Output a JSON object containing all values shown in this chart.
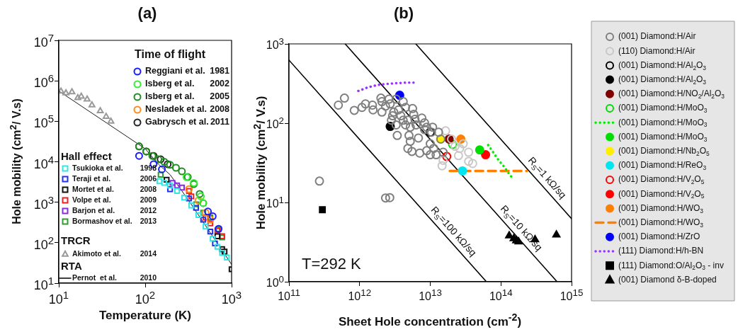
{
  "chart_data": [
    {
      "type": "scatter",
      "title": "(a)",
      "xlabel": "Temperature (K)",
      "ylabel": "Hole mobility (cm$^{2}$/ V.s)",
      "log": "xy",
      "grid": false,
      "legend": "top right",
      "xlim": [
        10,
        1000
      ],
      "ylim": [
        10,
        10000000
      ],
      "xticks": [
        {
          "value": 10,
          "label": "10$^{1}$"
        },
        {
          "value": 100,
          "label": "10$^{2}$"
        },
        {
          "value": 1000,
          "label": "10$^{3}$"
        }
      ],
      "yticks": [
        {
          "value": 10,
          "label": "10$^{1}$"
        },
        {
          "value": 100,
          "label": "10$^{2}$"
        },
        {
          "value": 1000,
          "label": "10$^{3}$"
        },
        {
          "value": 10000,
          "label": "10$^{4}$"
        },
        {
          "value": 100000,
          "label": "10$^{5}$"
        },
        {
          "value": 1000000,
          "label": "10$^{6}$"
        },
        {
          "value": 10000000,
          "label": "10$^{7}$"
        }
      ],
      "annotations": [
        "Time of flight",
        "Hall effect",
        "TRCR",
        "RTA"
      ],
      "series": [
        {
          "name": "Reggiani et al. 1981",
          "color": "#1a1aff",
          "marker": "circle-open",
          "x": [
            85,
            125,
            156,
            532,
            604,
            707
          ],
          "values": [
            14000,
            8700,
            6500,
            590,
            450,
            220
          ]
        },
        {
          "name": "Isberg et al. 2002",
          "color": "#33ee33",
          "marker": "circle-open",
          "x": [
            301,
            365,
            440,
            469
          ],
          "values": [
            4200,
            3000,
            1400,
            950
          ]
        },
        {
          "name": "Isberg et al. 2005",
          "color": "#228b22",
          "marker": "circle-open",
          "x": [
            85,
            103,
            121,
            142,
            166,
            194,
            227,
            266,
            311,
            365,
            427,
            469
          ],
          "values": [
            24000,
            18000,
            14000,
            11500,
            10000,
            8400,
            7100,
            5800,
            4200,
            2800,
            1600,
            950
          ]
        },
        {
          "name": "Nesladek et al. 2008",
          "color": "#ff8c1a",
          "marker": "circle-open",
          "x": [
            321,
            413,
            500,
            567
          ],
          "values": [
            2100,
            1100,
            550,
            370
          ]
        },
        {
          "name": "Gabrysch et al. 2011",
          "color": "#222222",
          "marker": "circle-open",
          "x": [
            85,
            103,
            125,
            151,
            182
          ],
          "values": [
            24000,
            18000,
            14000,
            11500,
            8700
          ]
        },
        {
          "name": "Tsukioka et al. 1998",
          "color": "#33e6e6",
          "marker": "square-open",
          "x": [
            146,
            166,
            194,
            234,
            283,
            342,
            413,
            500,
            604,
            685,
            777,
            881
          ],
          "values": [
            3300,
            3000,
            2600,
            1900,
            1300,
            830,
            480,
            250,
            126,
            79,
            56,
            43
          ]
        },
        {
          "name": "Teraji et al. 2006",
          "color": "#2233ee",
          "marker": "square-open",
          "x": [
            194,
            321,
            388,
            469,
            567,
            642
          ],
          "values": [
            2100,
            1240,
            724,
            369,
            188,
            96
          ]
        },
        {
          "name": "Mortet et al. 2008",
          "color": "#111111",
          "marker": "square-open",
          "x": [
            177,
            685,
            777,
            828,
            881,
            1000
          ],
          "values": [
            3600,
            144,
            69,
            60,
            null,
            22
          ]
        },
        {
          "name": "Volpe et al. 2009",
          "color": "#ee2222",
          "marker": "square-open",
          "x": [
            321,
            342,
            500,
            567,
            685,
            777
          ],
          "values": [
            1900,
            1400,
            420,
            300,
            200,
            144
          ]
        },
        {
          "name": "Barjon et al. 2012",
          "color": "#8a2be2",
          "marker": "square-open",
          "x": [
            207,
            234,
            266
          ],
          "values": [
            3000,
            2600,
            2300
          ]
        },
        {
          "name": "Bormashov et al. 2013",
          "color": "#2e9e2e",
          "marker": "square-open",
          "x": [
            151,
            388,
            469,
            567,
            707,
            777
          ],
          "values": [
            4800,
            890,
            550,
            420,
            215,
            135
          ]
        },
        {
          "name": "Akimoto et al. 2014",
          "color": "#999999",
          "marker": "triangle-open",
          "x": [
            10.6,
            12.1,
            14.2,
            16.6,
            18.2,
            21.3,
            24.2,
            30.2,
            35.3,
            40.1
          ],
          "values": [
            550000,
            500000,
            530000,
            380000,
            410000,
            350000,
            250000,
            180000,
            130000,
            99000
          ]
        },
        {
          "name": "Pernot  et al. 2010",
          "type": "line",
          "color": "#000000",
          "marker": "none",
          "line_style": "solid",
          "x": [
            10,
            100,
            142,
            194,
            266,
            365,
            603,
            1000
          ],
          "values": [
            560000,
            21000,
            8700,
            4800,
            1900,
            720,
            144,
            29
          ]
        }
      ]
    },
    {
      "type": "scatter",
      "title": "(b)",
      "xlabel": "Sheet Hole concentration (cm$^{-2}$)",
      "ylabel": "Hole mobility (cm$^{2}$/ V.s)",
      "log": "xy",
      "grid": false,
      "legend": "right",
      "xlim": [
        100000000000,
        1000000000000000
      ],
      "ylim": [
        1,
        1000
      ],
      "xticks": [
        {
          "value": 100000000000,
          "label": "10$^{11}$"
        },
        {
          "value": 1000000000000,
          "label": "10$^{12}$"
        },
        {
          "value": 10000000000000,
          "label": "10$^{13}$"
        },
        {
          "value": 100000000000000,
          "label": "10$^{14}$"
        },
        {
          "value": 1000000000000000,
          "label": "10$^{15}$"
        }
      ],
      "yticks": [
        {
          "value": 1,
          "label": "10$^{0}$"
        },
        {
          "value": 10,
          "label": "10$^{1}$"
        },
        {
          "value": 100,
          "label": "10$^{2}$"
        },
        {
          "value": 1000,
          "label": "10$^{3}$"
        }
      ],
      "annotations": [
        "T=292 K"
      ],
      "series": [
        {
          "name": "(001) Diamond:H/Air",
          "color": "#7f7f7f",
          "marker": "circle-open",
          "x": [
            270000000000.0,
            500000000000.0,
            610000000000.0,
            840000000000.0,
            1080000000000.0,
            1210000000000.0,
            1520000000000.0,
            1550000000000.0,
            2000000000000.0,
            2070000000000.0,
            2070000000000.0,
            2330000000000.0,
            2610000000000.0,
            2710000000000.0,
            2820000000000.0,
            2930000000000.0,
            3040000000000.0,
            3290000000000.0,
            3410000000000.0,
            3550000000000.0,
            3830000000000.0,
            4140000000000.0,
            4470000000000.0,
            4640000000000.0,
            4820000000000.0,
            5210000000000.0,
            5620000000000.0,
            5840000000000.0,
            6070000000000.0,
            2820000000000.0,
            3290000000000.0,
            3410000000000.0,
            4140000000000.0,
            4470000000000.0,
            5000000000000.0,
            5210000000000.0,
            6300000000000.0,
            6800000000000.0,
            7600000000000.0,
            8300000000000.0,
            8300000000000.0,
            8900000000000.0,
            10000000000000.0,
            10400000000000.0,
            10800000000000.0,
            11200000000000.0,
            12100000000000.0,
            13100000000000.0,
            14100000000000.0,
            7100000000000.0,
            8900000000000.0,
            10000000000000.0,
            15200000000000.0,
            4820000000000.0,
            5500000000000.0,
            2330000000000.0,
            2670000000000.0
          ],
          "values": [
            18.6,
            169,
            207,
            145,
            158,
            175,
            169,
            147,
            207,
            138,
            187,
            164,
            201,
            175,
            null,
            124,
            138,
            201,
            null,
            147,
            124,
            187,
            158,
            null,
            109,
            89,
            153,
            129,
            112,
            109,
            95,
            70,
            109,
            95,
            70,
            59,
            95,
            65,
            116,
            101,
            83,
            89,
            55,
            77,
            89,
            48,
            40,
            77,
            63,
            42,
            45,
            40,
            43,
            48,
            44,
            11.4,
            11.5
          ]
        },
        {
          "name": "(110) Diamond:H/Air",
          "color": "#c8c8c8",
          "marker": "circle-open",
          "x": [
            16500000000000.0,
            20000000000000.0,
            22400000000000.0,
            15200000000000.0,
            14700000000000.0,
            26100000000000.0,
            29300000000000.0,
            34900000000000.0,
            34900000000000.0,
            39800000000000.0,
            25100000000000.0
          ],
          "values": [
            80,
            63,
            51,
            34,
            29,
            48,
            55,
            43,
            33,
            31,
            39
          ]
        },
        {
          "name": "(001) Diamond:H/Al$_{2}$O$_{3}$",
          "color": "#000000",
          "marker": "circle-open",
          "x": [
            10000000000000.0
          ],
          "values": [
            77
          ]
        },
        {
          "name": "(001) Diamond:H/Al$_{2}$O$_{3}$",
          "color": "#000000",
          "marker": "circle",
          "x": [
            2710000000000.0
          ],
          "values": [
            91
          ]
        },
        {
          "name": "(001) Diamond:H/NO$_{2}$/Al$_{2}$O$_{3}$",
          "color": "#800000",
          "marker": "circle",
          "x": [
            18500000000000.0
          ],
          "values": [
            63
          ]
        },
        {
          "name": "(001) Diamond:H/MoO$_{3}$",
          "color": "#00dd00",
          "marker": "circle-open",
          "x": [
            20700000000000.0
          ],
          "values": [
            54
          ]
        },
        {
          "name": "(001) Diamond:H/MoO$_{3}$",
          "type": "line",
          "color": "#00ee00",
          "marker": "none",
          "line_style": "dotted",
          "x": [
            66000000000000.0,
            79000000000000.0,
            93000000000000.0,
            112000000000000.0,
            126000000000000.0,
            141000000000000.0
          ],
          "values": [
            53,
            42,
            34,
            28,
            24,
            21
          ]
        },
        {
          "name": "(001) Diamond:H/MoO$_{3}$",
          "color": "#00dd00",
          "marker": "circle",
          "x": [
            50000000000000.0
          ],
          "values": [
            46
          ]
        },
        {
          "name": "(001) Diamond:H/Nb$_{2}$O$_{5}$",
          "color": "#ffee00",
          "marker": "circle",
          "x": [
            13900000000000.0
          ],
          "values": [
            63
          ]
        },
        {
          "name": "(001) Diamond:H/ReO$_{3}$",
          "color": "#00e5ee",
          "marker": "circle",
          "x": [
            28600000000000.0
          ],
          "values": [
            25
          ]
        },
        {
          "name": "(001) Diamond:H/V$_{2}$O$_{5}$",
          "color": "#ff0000",
          "marker": "circle-open",
          "x": [
            17100000000000.0
          ],
          "values": [
            38
          ]
        },
        {
          "name": "(001) Diamond:H/V$_{2}$O$_{5}$",
          "color": "#ff0000",
          "marker": "circle",
          "x": [
            60700000000000.0
          ],
          "values": [
            40
          ]
        },
        {
          "name": "(001) Diamond:H/WO$_{3}$",
          "color": "#ff8000",
          "marker": "circle",
          "x": [
            27100000000000.0
          ],
          "values": [
            63
          ]
        },
        {
          "name": "(001) Diamond:H/WO$_{3}$",
          "type": "line",
          "color": "#ff8000",
          "marker": "none",
          "line_style": "dashed",
          "x": [
            18900000000000.0,
            233000000000000.0
          ],
          "values": [
            25,
            25
          ]
        },
        {
          "name": "(001) Diamond:H/ZrO",
          "color": "#0000ff",
          "marker": "circle",
          "x": [
            3690000000000.0
          ],
          "values": [
            225
          ]
        },
        {
          "name": "(111) Diamond:H/h-BN",
          "type": "line",
          "color": "#9933ff",
          "marker": "none",
          "line_style": "dotted",
          "x": [
            960000000000.0,
            1310000000000.0,
            1780000000000.0,
            2420000000000.0,
            3290000000000.0,
            4470000000000.0,
            6300000000000.0
          ],
          "values": [
            255,
            283,
            303,
            313,
            320,
            324,
            324
          ]
        },
        {
          "name": "(111) Diamond:O/Al$_{2}$O$_{3}$ - inv",
          "color": "#000000",
          "marker": "square",
          "x": [
            297000000000.0
          ],
          "values": [
            8.1
          ]
        },
        {
          "name": "(001) Diamond δ-B-doped",
          "color": "#000000",
          "marker": "triangle",
          "x": [
            131000000000000.0,
            152000000000000.0,
            165000000000000.0,
            178000000000000.0,
            304000000000000.0,
            610000000000000.0
          ],
          "values": [
            3.8,
            3.5,
            3.3,
            3.2,
            3.4,
            3.9
          ]
        },
        {
          "name": "R$_{S}$=100 kΩ/sq",
          "type": "line",
          "color": "#000000",
          "marker": "none",
          "line_style": "solid",
          "x": [
            100000000000.0,
            62400000000000.0
          ],
          "values": [
            624,
            1
          ]
        },
        {
          "name": "R$_{S}$=10 kΩ/sq",
          "type": "line",
          "color": "#000000",
          "marker": "none",
          "line_style": "solid",
          "x": [
            624000000000.0,
            624000000000000.0
          ],
          "values": [
            1000,
            1
          ]
        },
        {
          "name": "R$_{S}$=1 kΩ/sq",
          "type": "line",
          "color": "#000000",
          "marker": "none",
          "line_style": "solid",
          "x": [
            6240000000000.0,
            1000000000000000.0
          ],
          "values": [
            1000,
            6.24
          ]
        }
      ]
    }
  ]
}
